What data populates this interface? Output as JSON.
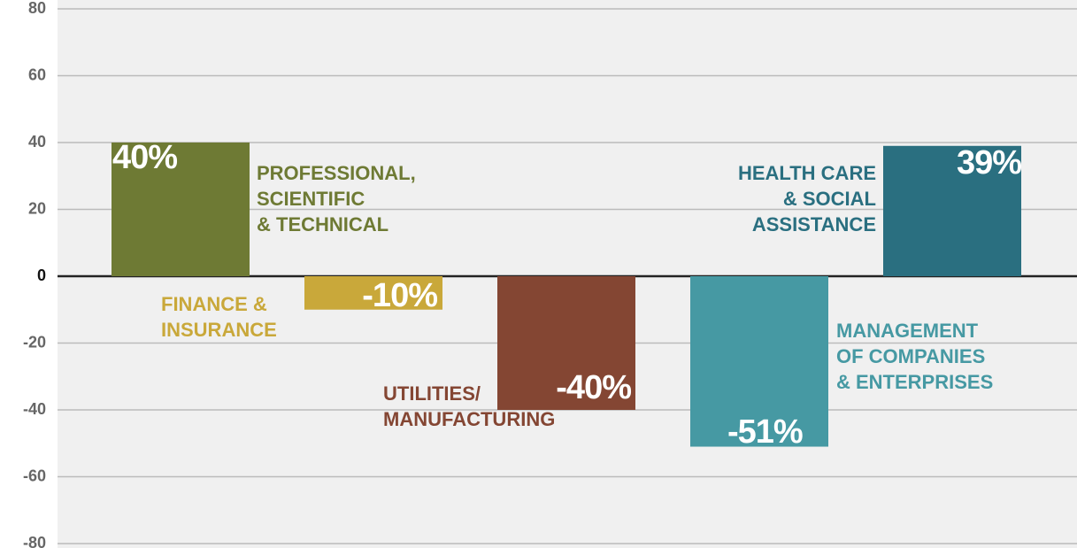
{
  "chart_data": {
    "type": "bar",
    "categories": [
      [
        "PROFESSIONAL,",
        "SCIENTIFIC",
        "& TECHNICAL"
      ],
      [
        "FINANCE &",
        "INSURANCE"
      ],
      [
        "UTILITIES/",
        "MANUFACTURING"
      ],
      [
        "MANAGEMENT",
        "OF COMPANIES",
        "& ENTERPRISES"
      ],
      [
        "HEALTH CARE",
        "& SOCIAL",
        "ASSISTANCE"
      ]
    ],
    "values": [
      40,
      -10,
      -40,
      -51,
      39
    ],
    "value_labels": [
      "40%",
      "-10%",
      "-40%",
      "-51%",
      "39%"
    ],
    "colors": [
      "#6e7a34",
      "#c9a83a",
      "#844633",
      "#4699a3",
      "#2a6f80"
    ],
    "ylim": [
      -80,
      80
    ],
    "yticks": [
      -80,
      -60,
      -40,
      -20,
      0,
      20,
      40,
      60,
      80
    ],
    "grid": true
  }
}
